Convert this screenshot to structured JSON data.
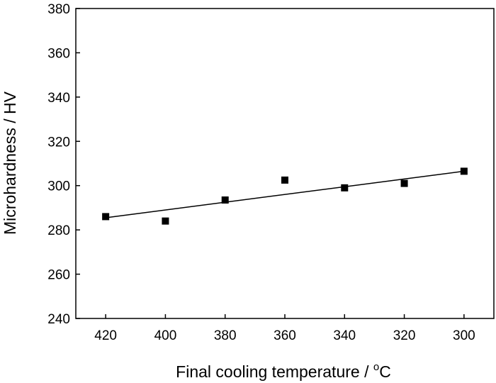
{
  "chart_data": {
    "type": "scatter",
    "title": "",
    "xlabel": "Final cooling temperature / °C",
    "xlabel_parts": {
      "prefix": "Final cooling temperature / ",
      "superscript": "o",
      "suffix": "C"
    },
    "ylabel": "Microhardness / HV",
    "xlim": [
      290,
      430
    ],
    "x_axis_reversed": true,
    "ylim": [
      240,
      380
    ],
    "x_ticks": [
      420,
      400,
      380,
      360,
      340,
      320,
      300
    ],
    "y_ticks": [
      240,
      260,
      280,
      300,
      320,
      340,
      360,
      380
    ],
    "grid": false,
    "legend": "none",
    "marker": "square",
    "marker_color": "#000000",
    "line_color": "#000000",
    "points": [
      {
        "x": 420,
        "y": 286
      },
      {
        "x": 400,
        "y": 284
      },
      {
        "x": 380,
        "y": 293.5
      },
      {
        "x": 360,
        "y": 302.5
      },
      {
        "x": 340,
        "y": 299
      },
      {
        "x": 320,
        "y": 301
      },
      {
        "x": 300,
        "y": 306.5
      }
    ],
    "trendline": {
      "type": "linear",
      "from": {
        "x": 420,
        "y": 285.5
      },
      "to": {
        "x": 300,
        "y": 306.5
      }
    }
  }
}
